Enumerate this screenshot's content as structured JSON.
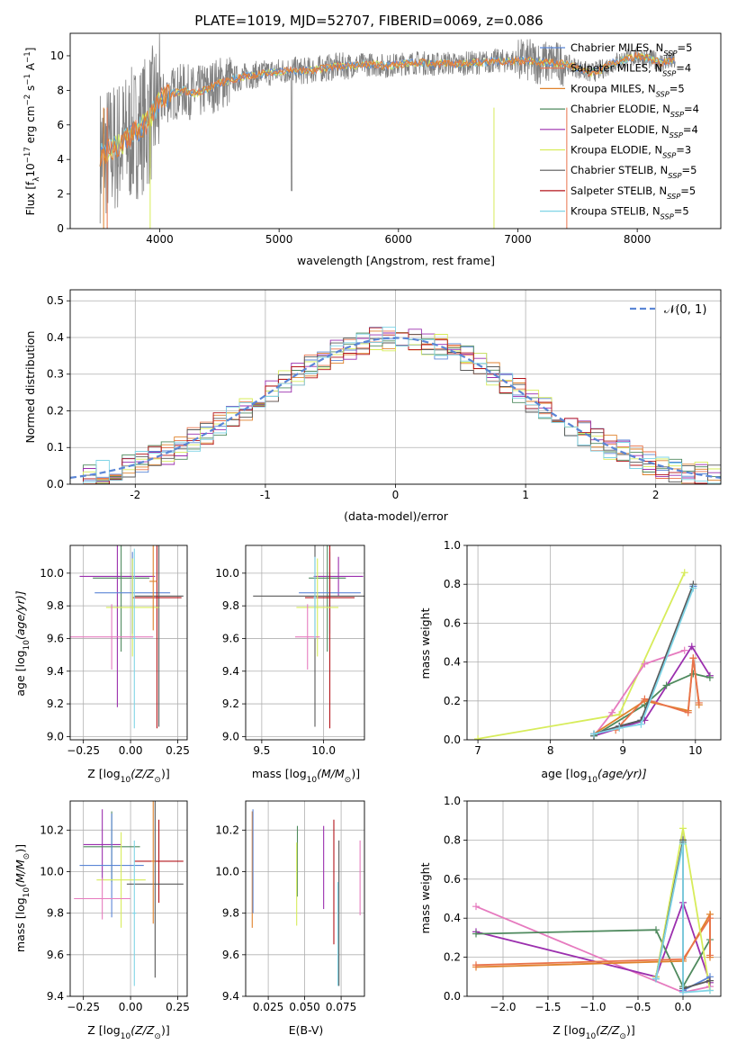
{
  "title": "PLATE=1019, MJD=52707, FIBERID=0069, z=0.086",
  "colors": {
    "Chabrier MILES": "#5b86d6",
    "Salpeter MILES": "#e9734b",
    "Kroupa MILES": "#e0822c",
    "Chabrier ELODIE": "#4f8a5e",
    "Salpeter ELODIE": "#9b2fae",
    "Kroupa ELODIE": "#d7ec5a",
    "Chabrier STELIB": "#595959",
    "Salpeter STELIB": "#b3141a",
    "Kroupa STELIB": "#7fd4e6",
    "pink": "#e67bbf",
    "data": "#808080"
  },
  "chart_data": [
    {
      "id": "spectrum",
      "type": "line",
      "title": "PLATE=1019, MJD=52707, FIBERID=0069, z=0.086",
      "xlabel": "wavelength [Angstrom, rest frame]",
      "ylabel_main": "Flux [f",
      "ylabel_sub": "λ",
      "ylabel_rest": "10",
      "ylabel_exp1": "−17",
      "ylabel_rest2": " erg cm",
      "ylabel_exp2": "−2",
      "ylabel_rest3": " s",
      "ylabel_exp3": "−1",
      "ylabel_rest4": " A",
      "ylabel_exp4": "−1",
      "ylabel_end": "]",
      "xlim": [
        3250,
        8700
      ],
      "ylim": [
        0,
        11.3
      ],
      "xticks": [
        4000,
        5000,
        6000,
        7000,
        8000
      ],
      "yticks": [
        0,
        2,
        4,
        6,
        8,
        10
      ],
      "grid": false,
      "legend_position": "right",
      "legend": [
        {
          "name": "Chabrier MILES",
          "nssp": "5"
        },
        {
          "name": "Salpeter MILES",
          "nssp": "4"
        },
        {
          "name": "Kroupa MILES",
          "nssp": "5"
        },
        {
          "name": "Chabrier ELODIE",
          "nssp": "4"
        },
        {
          "name": "Salpeter ELODIE",
          "nssp": "4"
        },
        {
          "name": "Kroupa ELODIE",
          "nssp": "3"
        },
        {
          "name": "Chabrier STELIB",
          "nssp": "5"
        },
        {
          "name": "Salpeter STELIB",
          "nssp": "5"
        },
        {
          "name": "Kroupa STELIB",
          "nssp": "5"
        }
      ],
      "nssp_label": "N",
      "nssp_sub": "SSP",
      "continuum": [
        [
          3500,
          4.3
        ],
        [
          3600,
          4.6
        ],
        [
          3700,
          5.0
        ],
        [
          3800,
          5.6
        ],
        [
          3900,
          6.2
        ],
        [
          4000,
          7.4
        ],
        [
          4100,
          7.8
        ],
        [
          4200,
          8.0
        ],
        [
          4300,
          7.8
        ],
        [
          4400,
          8.1
        ],
        [
          4500,
          8.4
        ],
        [
          4600,
          8.6
        ],
        [
          4700,
          8.8
        ],
        [
          4800,
          8.9
        ],
        [
          4900,
          9.0
        ],
        [
          5000,
          9.1
        ],
        [
          5100,
          9.2
        ],
        [
          5200,
          9.1
        ],
        [
          5300,
          9.2
        ],
        [
          5400,
          9.3
        ],
        [
          5500,
          9.4
        ],
        [
          5600,
          9.4
        ],
        [
          5700,
          9.5
        ],
        [
          5800,
          9.5
        ],
        [
          5900,
          9.4
        ],
        [
          6000,
          9.5
        ],
        [
          6100,
          9.6
        ],
        [
          6200,
          9.6
        ],
        [
          6300,
          9.5
        ],
        [
          6400,
          9.6
        ],
        [
          6500,
          9.5
        ],
        [
          6600,
          9.6
        ],
        [
          6700,
          9.6
        ],
        [
          6800,
          9.7
        ],
        [
          6900,
          9.7
        ],
        [
          7000,
          9.7
        ],
        [
          7100,
          9.7
        ],
        [
          7200,
          9.6
        ],
        [
          7300,
          9.6
        ],
        [
          7400,
          9.5
        ],
        [
          7500,
          9.3
        ],
        [
          7600,
          9.0
        ],
        [
          7700,
          9.2
        ],
        [
          7800,
          9.6
        ],
        [
          7900,
          9.8
        ],
        [
          8000,
          10.0
        ],
        [
          8100,
          9.8
        ],
        [
          8200,
          9.6
        ],
        [
          8300,
          9.7
        ]
      ]
    },
    {
      "id": "residuals",
      "type": "step",
      "xlabel": "(data-model)/error",
      "ylabel": "Normed distribution",
      "xlim": [
        -2.5,
        2.5
      ],
      "ylim": [
        0,
        0.53
      ],
      "xticks": [
        -2,
        -1,
        0,
        1,
        2
      ],
      "yticks": [
        0.0,
        0.1,
        0.2,
        0.3,
        0.4,
        0.5
      ],
      "grid": true,
      "legend_position": "top-right",
      "gaussian_label": "𝒩(0, 1)",
      "bin_width": 0.1
    },
    {
      "id": "age_vs_Z",
      "type": "scatter",
      "xlabel": "Z [log",
      "xlabel_sub": "10",
      "xlabel_rest": "(Z/Z",
      "xlabel_sub2": "⊙",
      "xlabel_end": ")]",
      "ylabel": "age  [log",
      "ylabel_sub": "10",
      "ylabel_rest": "(age/yr)]",
      "xlim": [
        -0.32,
        0.3
      ],
      "ylim": [
        8.98,
        10.17
      ],
      "xticks": [
        -0.25,
        0.0,
        0.25
      ],
      "xticklabels": [
        "−0.25",
        "0.00",
        "0.25"
      ],
      "yticks": [
        9.0,
        9.2,
        9.4,
        9.6,
        9.8,
        10.0
      ],
      "grid": true,
      "points": [
        {
          "c": "Salpeter ELODIE",
          "x": -0.07,
          "y": 9.98,
          "xe": 0.2,
          "ye": 0.8
        },
        {
          "c": "Chabrier ELODIE",
          "x": -0.05,
          "y": 9.97,
          "xe": 0.15,
          "ye": 0.45
        },
        {
          "c": "Chabrier MILES",
          "x": 0.01,
          "y": 9.88,
          "xe": 0.2,
          "ye": 0.25
        },
        {
          "c": "Chabrier STELIB",
          "x": 0.15,
          "y": 9.86,
          "xe": 0.13,
          "ye": 0.8
        },
        {
          "c": "Salpeter STELIB",
          "x": 0.14,
          "y": 9.85,
          "xe": 0.13,
          "ye": 0.8
        },
        {
          "c": "Kroupa ELODIE",
          "x": 0.01,
          "y": 9.79,
          "xe": 0.14,
          "ye": 0.3
        },
        {
          "c": "pink",
          "x": -0.1,
          "y": 9.61,
          "xe": 0.22,
          "ye": 0.2
        },
        {
          "c": "Kroupa MILES",
          "x": 0.12,
          "y": 9.95,
          "xe": 0.02,
          "ye": 0.3
        },
        {
          "c": "Kroupa STELIB",
          "x": 0.02,
          "y": 9.6,
          "xe": 0.01,
          "ye": 0.55
        }
      ]
    },
    {
      "id": "age_vs_mass",
      "type": "scatter",
      "xlabel": "mass [log",
      "xlabel_sub": "10",
      "xlabel_rest": "(M/M",
      "xlabel_sub2": "⊙",
      "xlabel_end": ")]",
      "xlim": [
        9.37,
        10.33
      ],
      "ylim": [
        8.98,
        10.17
      ],
      "xticks": [
        9.5,
        10.0
      ],
      "xticklabels": [
        "9.5",
        "10.0"
      ],
      "yticks": [
        9.0,
        9.2,
        9.4,
        9.6,
        9.8,
        10.0
      ],
      "grid": true,
      "points": [
        {
          "c": "Salpeter ELODIE",
          "x": 10.12,
          "y": 9.98,
          "xe": 0.2,
          "ye": 0.12
        },
        {
          "c": "Chabrier ELODIE",
          "x": 10.03,
          "y": 9.97,
          "xe": 0.15,
          "ye": 0.45
        },
        {
          "c": "Chabrier MILES",
          "x": 10.05,
          "y": 9.88,
          "xe": 0.25,
          "ye": 0.25
        },
        {
          "c": "Chabrier STELIB",
          "x": 9.93,
          "y": 9.86,
          "xe": 0.5,
          "ye": 0.8
        },
        {
          "c": "Salpeter STELIB",
          "x": 10.05,
          "y": 9.85,
          "xe": 0.2,
          "ye": 0.8
        },
        {
          "c": "Kroupa ELODIE",
          "x": 9.95,
          "y": 9.79,
          "xe": 0.17,
          "ye": 0.3
        },
        {
          "c": "pink",
          "x": 9.87,
          "y": 9.61,
          "xe": 0.1,
          "ye": 0.2
        },
        {
          "c": "Kroupa STELIB",
          "x": 9.93,
          "y": 9.85,
          "xe": 0.01,
          "ye": 0.25
        }
      ]
    },
    {
      "id": "weight_vs_age",
      "type": "line",
      "xlabel": "age  [log",
      "xlabel_sub": "10",
      "xlabel_rest": "(age/yr)]",
      "ylabel": "mass weight",
      "xlim": [
        6.85,
        10.35
      ],
      "ylim": [
        0,
        1.0
      ],
      "xticks": [
        7,
        8,
        9,
        10
      ],
      "xticklabels": [
        "7",
        "8",
        "9",
        "10"
      ],
      "yticks": [
        0.0,
        0.2,
        0.4,
        0.6,
        0.8,
        1.0
      ],
      "grid": true,
      "series": [
        {
          "c": "Kroupa ELODIE",
          "x": [
            7.0,
            8.95,
            9.85
          ],
          "y": [
            0.005,
            0.13,
            0.86
          ]
        },
        {
          "c": "pink",
          "x": [
            8.6,
            8.85,
            9.3,
            9.85
          ],
          "y": [
            0.02,
            0.14,
            0.39,
            0.46
          ]
        },
        {
          "c": "Salpeter ELODIE",
          "x": [
            8.6,
            9.3,
            9.95,
            10.2
          ],
          "y": [
            0.02,
            0.1,
            0.48,
            0.33
          ]
        },
        {
          "c": "Chabrier ELODIE",
          "x": [
            8.6,
            9.3,
            9.6,
            9.97,
            10.2
          ],
          "y": [
            0.02,
            0.18,
            0.28,
            0.34,
            0.32
          ]
        },
        {
          "c": "Kroupa MILES",
          "x": [
            8.6,
            9.3,
            9.9,
            9.97,
            10.05
          ],
          "y": [
            0.03,
            0.2,
            0.15,
            0.42,
            0.18
          ]
        },
        {
          "c": "Salpeter MILES",
          "x": [
            8.9,
            9.3,
            9.9,
            9.97,
            10.05
          ],
          "y": [
            0.05,
            0.21,
            0.14,
            0.42,
            0.19
          ]
        },
        {
          "c": "Chabrier MILES",
          "x": [
            8.6,
            8.95,
            9.25,
            9.97
          ],
          "y": [
            0.03,
            0.07,
            0.1,
            0.79
          ]
        },
        {
          "c": "Chabrier STELIB",
          "x": [
            8.6,
            8.95,
            9.25,
            9.97
          ],
          "y": [
            0.03,
            0.07,
            0.1,
            0.8
          ]
        },
        {
          "c": "Kroupa STELIB",
          "x": [
            8.6,
            8.95,
            9.25,
            9.97
          ],
          "y": [
            0.03,
            0.06,
            0.08,
            0.78
          ]
        }
      ]
    },
    {
      "id": "mass_vs_Z",
      "type": "scatter",
      "xlabel": "Z [log",
      "xlabel_sub": "10",
      "xlabel_rest": "(Z/Z",
      "xlabel_sub2": "⊙",
      "xlabel_end": ")]",
      "ylabel": "mass [log",
      "ylabel_sub": "10",
      "ylabel_rest": "(M/M",
      "ylabel_sub2": "⊙",
      "ylabel_end": ")]",
      "xlim": [
        -0.32,
        0.3
      ],
      "ylim": [
        9.4,
        10.34
      ],
      "xticks": [
        -0.25,
        0.0,
        0.25
      ],
      "xticklabels": [
        "−0.25",
        "0.00",
        "0.25"
      ],
      "yticks": [
        9.4,
        9.6,
        9.8,
        10.0,
        10.2
      ],
      "grid": true,
      "points": [
        {
          "c": "Salpeter ELODIE",
          "x": -0.15,
          "y": 10.13,
          "xe": 0.1,
          "ye": 0.17
        },
        {
          "c": "Chabrier ELODIE",
          "x": -0.1,
          "y": 10.12,
          "xe": 0.15,
          "ye": 0.17
        },
        {
          "c": "Salpeter STELIB",
          "x": 0.15,
          "y": 10.05,
          "xe": 0.13,
          "ye": 0.2
        },
        {
          "c": "Chabrier MILES",
          "x": -0.1,
          "y": 10.03,
          "xe": 0.17,
          "ye": 0.25
        },
        {
          "c": "Kroupa ELODIE",
          "x": -0.05,
          "y": 9.96,
          "xe": 0.13,
          "ye": 0.23
        },
        {
          "c": "Chabrier STELIB",
          "x": 0.13,
          "y": 9.94,
          "xe": 0.15,
          "ye": 0.45
        },
        {
          "c": "pink",
          "x": -0.15,
          "y": 9.87,
          "xe": 0.15,
          "ye": 0.1
        },
        {
          "c": "Kroupa MILES",
          "x": 0.12,
          "y": 10.05,
          "xe": 0.01,
          "ye": 0.3
        },
        {
          "c": "Kroupa STELIB",
          "x": 0.02,
          "y": 9.8,
          "xe": 0.01,
          "ye": 0.35
        }
      ]
    },
    {
      "id": "mass_vs_ebv",
      "type": "scatter",
      "xlabel": "E(B-V)",
      "xlim": [
        0.0095,
        0.091
      ],
      "ylim": [
        9.4,
        10.34
      ],
      "xticks": [
        0.025,
        0.05,
        0.075
      ],
      "xticklabels": [
        "0.025",
        "0.050",
        "0.075"
      ],
      "yticks": [
        9.4,
        9.6,
        9.8,
        10.0,
        10.2
      ],
      "grid": true,
      "points": [
        {
          "c": "Kroupa MILES",
          "x": 0.014,
          "y": 10.01,
          "xe": 0,
          "ye": 0.28
        },
        {
          "c": "Chabrier MILES",
          "x": 0.0145,
          "y": 10.05,
          "xe": 0,
          "ye": 0.25
        },
        {
          "c": "Chabrier ELODIE",
          "x": 0.045,
          "y": 10.05,
          "xe": 0,
          "ye": 0.17
        },
        {
          "c": "Kroupa ELODIE",
          "x": 0.0445,
          "y": 9.94,
          "xe": 0,
          "ye": 0.2
        },
        {
          "c": "Salpeter ELODIE",
          "x": 0.063,
          "y": 10.02,
          "xe": 0,
          "ye": 0.2
        },
        {
          "c": "Salpeter STELIB",
          "x": 0.07,
          "y": 9.95,
          "xe": 0,
          "ye": 0.3
        },
        {
          "c": "Chabrier STELIB",
          "x": 0.0735,
          "y": 9.8,
          "xe": 0,
          "ye": 0.35
        },
        {
          "c": "Kroupa STELIB",
          "x": 0.0728,
          "y": 9.7,
          "xe": 0,
          "ye": 0.25
        },
        {
          "c": "pink",
          "x": 0.088,
          "y": 9.97,
          "xe": 0,
          "ye": 0.18
        }
      ]
    },
    {
      "id": "weight_vs_Z",
      "type": "line",
      "xlabel": "Z [log",
      "xlabel_sub": "10",
      "xlabel_rest": "(Z/Z",
      "xlabel_sub2": "⊙",
      "xlabel_end": ")]",
      "ylabel": "mass weight",
      "xlim": [
        -2.4,
        0.42
      ],
      "ylim": [
        0,
        1.0
      ],
      "xticks": [
        -2.0,
        -1.5,
        -1.0,
        -0.5,
        0.0
      ],
      "xticklabels": [
        "−2.0",
        "−1.5",
        "−1.0",
        "−0.5",
        "0.0"
      ],
      "yticks": [
        0.0,
        0.2,
        0.4,
        0.6,
        0.8,
        1.0
      ],
      "grid": true,
      "series": [
        {
          "c": "pink",
          "x": [
            -2.3,
            0.0,
            0.3
          ],
          "y": [
            0.46,
            0.02,
            0.05
          ]
        },
        {
          "c": "Salpeter ELODIE",
          "x": [
            -2.3,
            -0.3,
            0.0,
            0.3
          ],
          "y": [
            0.33,
            0.1,
            0.48,
            0.07
          ]
        },
        {
          "c": "Chabrier ELODIE",
          "x": [
            -2.3,
            -0.3,
            0.0,
            0.3
          ],
          "y": [
            0.32,
            0.34,
            0.05,
            0.29
          ]
        },
        {
          "c": "Kroupa MILES",
          "x": [
            -2.3,
            0.0,
            0.3,
            0.3
          ],
          "y": [
            0.15,
            0.18,
            0.42,
            0.2
          ]
        },
        {
          "c": "Salpeter MILES",
          "x": [
            -2.3,
            0.0,
            0.3,
            0.3
          ],
          "y": [
            0.16,
            0.19,
            0.4,
            0.21
          ]
        },
        {
          "c": "Kroupa ELODIE",
          "x": [
            -0.3,
            0.0,
            0.3
          ],
          "y": [
            0.1,
            0.86,
            0.03
          ]
        },
        {
          "c": "Chabrier MILES",
          "x": [
            -0.3,
            0.0,
            0.0,
            0.3
          ],
          "y": [
            0.09,
            0.79,
            0.03,
            0.1
          ]
        },
        {
          "c": "Chabrier STELIB",
          "x": [
            -0.3,
            0.0,
            0.0,
            0.3
          ],
          "y": [
            0.09,
            0.8,
            0.04,
            0.08
          ]
        },
        {
          "c": "Kroupa STELIB",
          "x": [
            -0.3,
            0.0,
            0.0,
            0.3
          ],
          "y": [
            0.09,
            0.78,
            0.02,
            0.03
          ]
        }
      ]
    }
  ]
}
